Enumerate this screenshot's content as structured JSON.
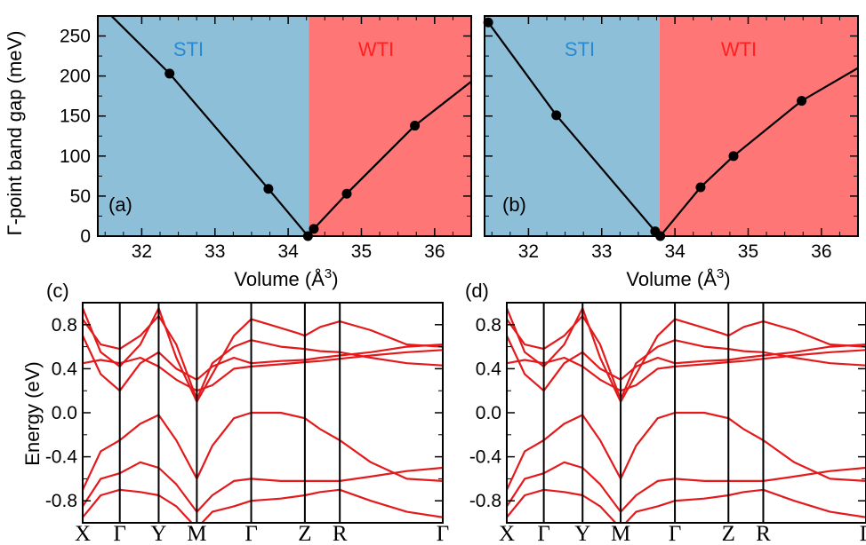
{
  "colors": {
    "sti_fill": "#8dbfd9",
    "wti_fill": "#ff7676",
    "sti_text": "#2a8ad0",
    "wti_text": "#ff2020",
    "line": "#000000",
    "band": "#e31a1c"
  },
  "chart_data": [
    {
      "panel": "(a)",
      "type": "line",
      "ylabel": "Γ-point band gap (meV)",
      "xlabel": "Volume (Å3)",
      "xlim": [
        31.4,
        36.5
      ],
      "ylim": [
        0,
        275
      ],
      "xticks": [
        32,
        33,
        34,
        35,
        36
      ],
      "yticks": [
        0,
        50,
        100,
        150,
        200,
        250
      ],
      "regions": [
        {
          "label": "STI",
          "from": 31.4,
          "to": 34.28
        },
        {
          "label": "WTI",
          "from": 34.28,
          "to": 36.5
        }
      ],
      "x": [
        31.4,
        32.38,
        33.73,
        34.27,
        34.35,
        34.8,
        35.73,
        36.5
      ],
      "y": [
        292,
        203,
        59,
        0,
        9,
        53,
        138,
        193
      ],
      "markers": [
        1,
        2,
        3,
        4,
        5,
        6
      ]
    },
    {
      "panel": "(b)",
      "type": "line",
      "ylabel": "",
      "xlabel": "Volume (Å3)",
      "xlim": [
        31.4,
        36.5
      ],
      "ylim": [
        0,
        275
      ],
      "xticks": [
        32,
        33,
        34,
        35,
        36
      ],
      "yticks": [
        0,
        50,
        100,
        150,
        200,
        250
      ],
      "regions": [
        {
          "label": "STI",
          "from": 31.4,
          "to": 33.79
        },
        {
          "label": "WTI",
          "from": 33.79,
          "to": 36.5
        }
      ],
      "x": [
        31.45,
        32.38,
        33.73,
        33.8,
        34.35,
        34.8,
        35.73,
        36.5
      ],
      "y": [
        267,
        151,
        6,
        0,
        61,
        100,
        169,
        210
      ],
      "markers": [
        0,
        1,
        2,
        3,
        4,
        5,
        6
      ]
    }
  ],
  "bands_c": {
    "panel": "(c)",
    "ylabel": "Energy (eV)",
    "yticks": [
      "0.8",
      "0.4",
      "0.0",
      "-0.4",
      "-0.8"
    ],
    "kpoints": [
      "X",
      "Γ",
      "Y",
      "M",
      "Γ",
      "Z",
      "R",
      "Γ"
    ]
  },
  "bands_d": {
    "panel": "(d)",
    "yticks": [
      "0.8",
      "0.4",
      "0.0",
      "-0.4",
      "-0.8"
    ],
    "kpoints": [
      "X",
      "Γ",
      "Y",
      "M",
      "Γ",
      "Z",
      "R",
      "Γ"
    ]
  }
}
